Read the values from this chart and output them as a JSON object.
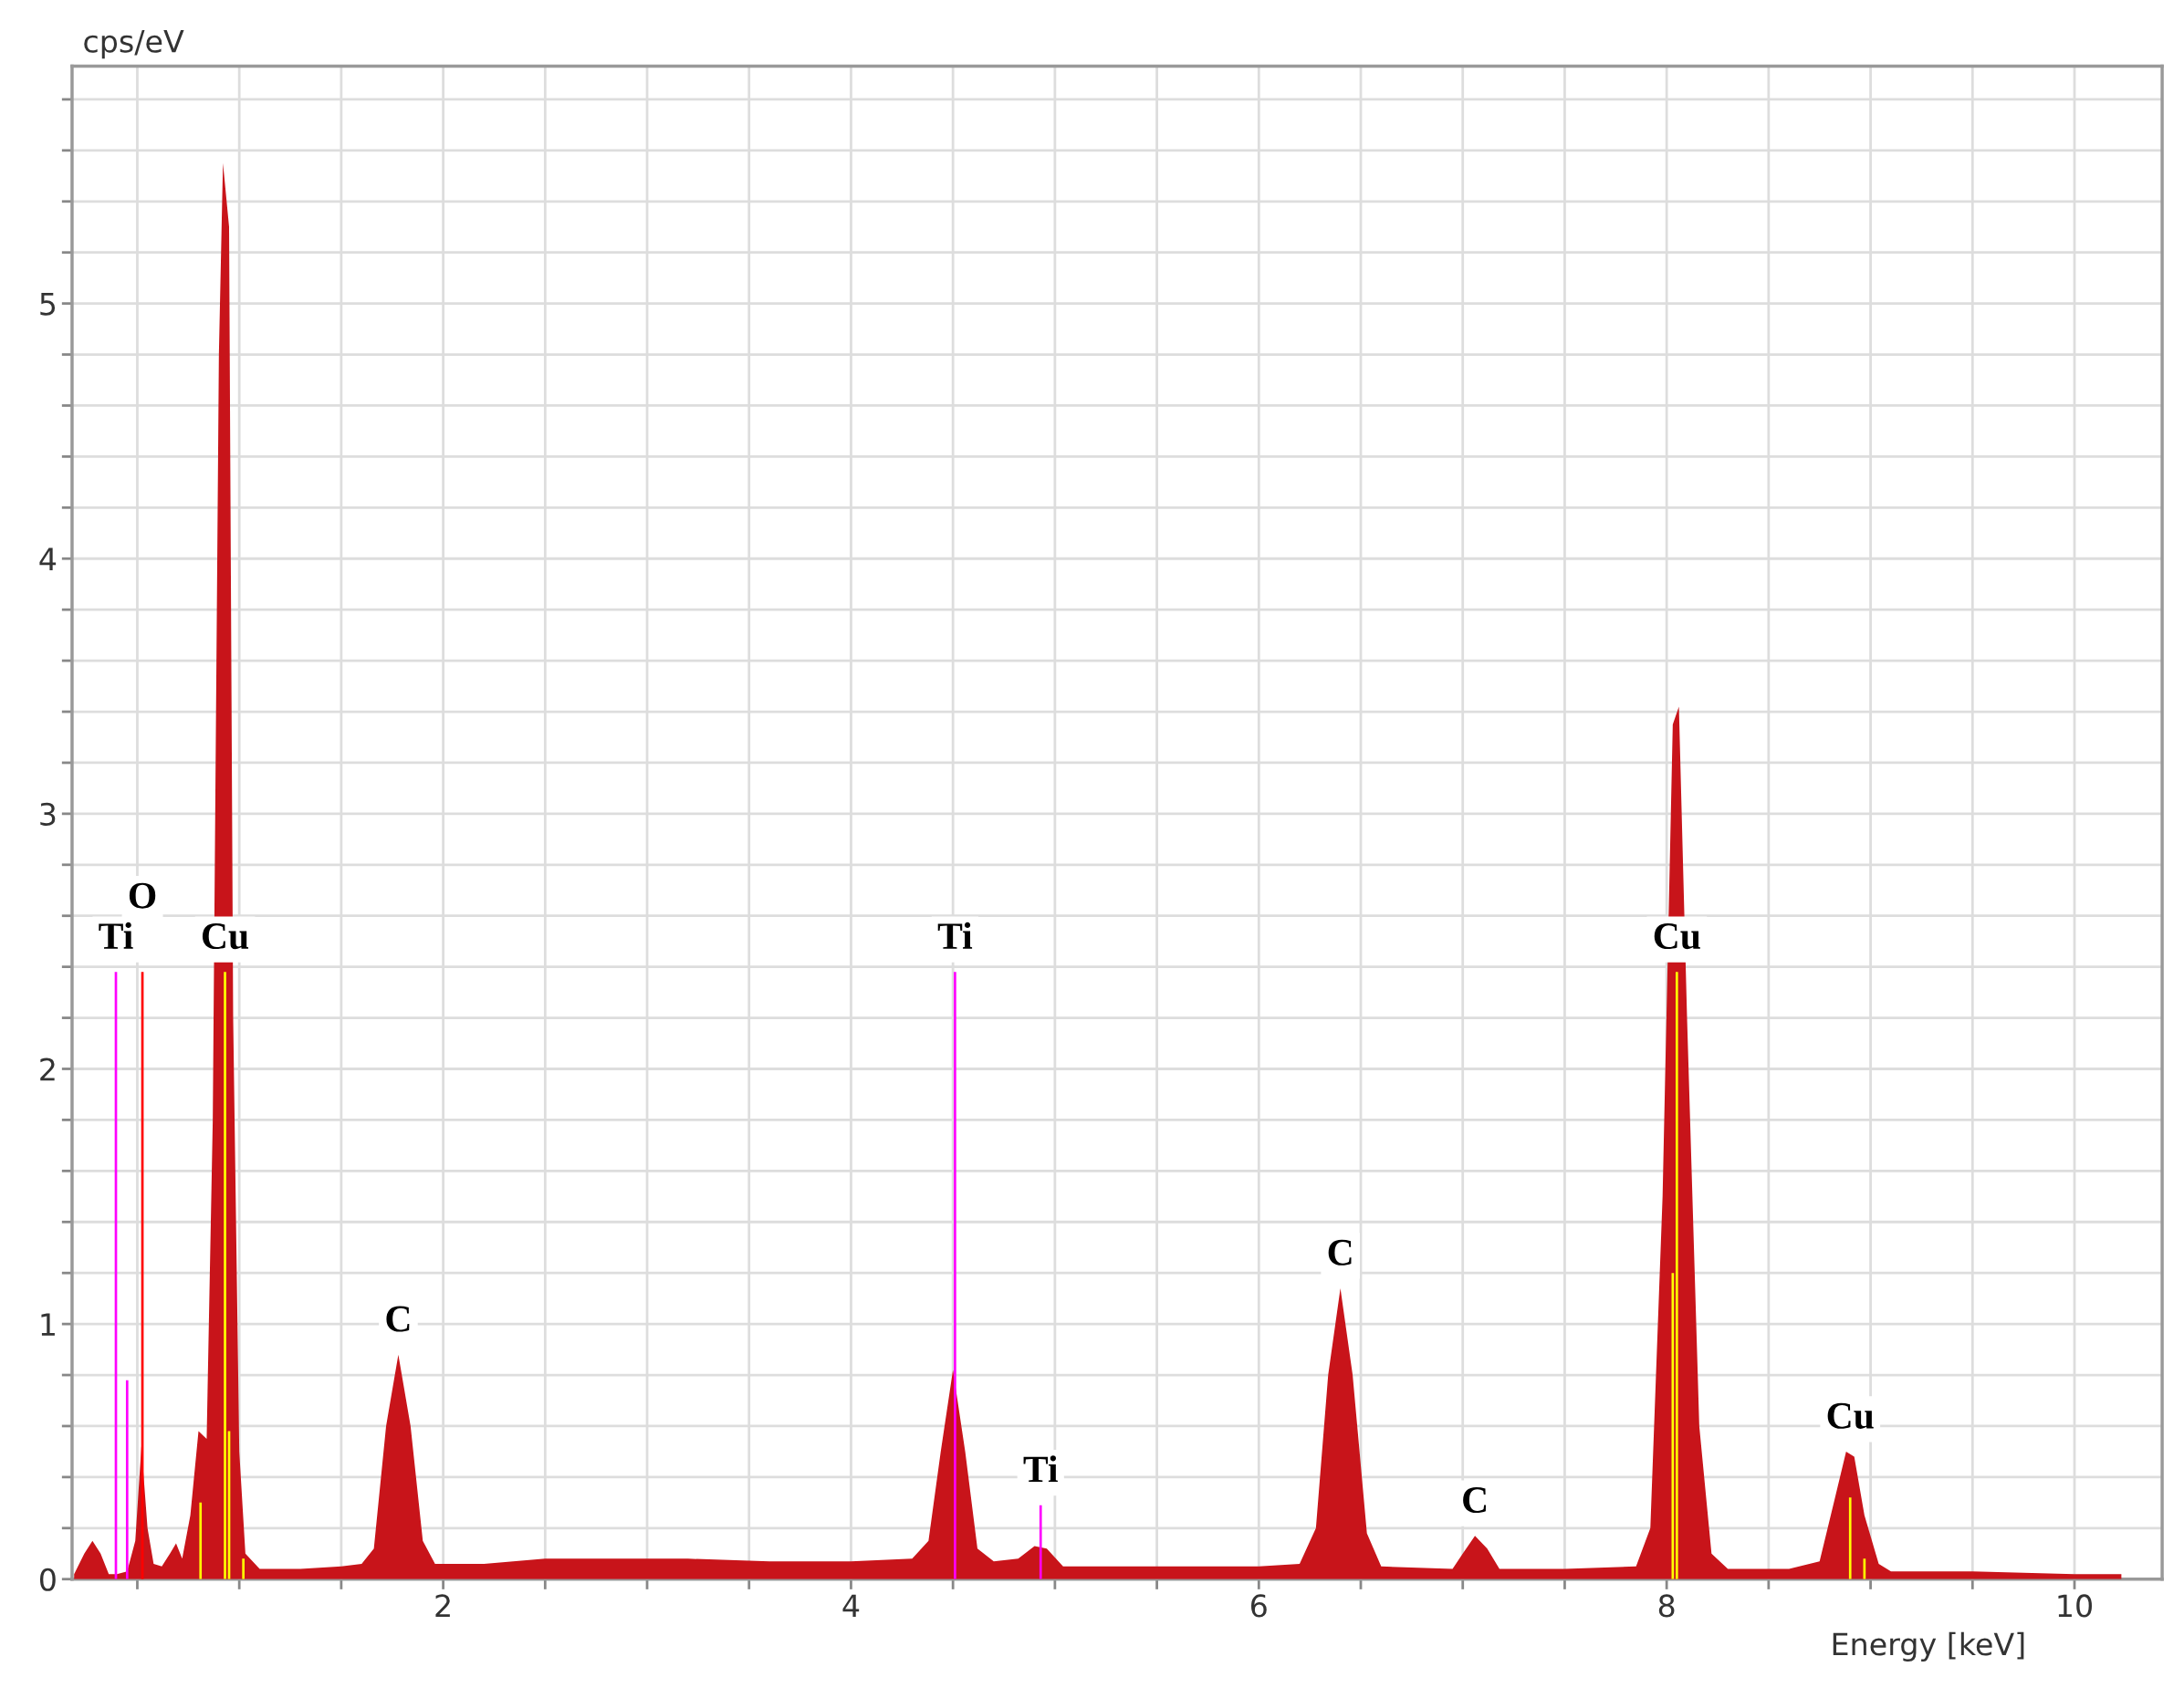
{
  "chart_data": {
    "type": "area",
    "xlabel": "Energy [keV]",
    "ylabel": "cps/eV",
    "xlim": [
      0.18,
      10.43
    ],
    "ylim": [
      0,
      5.93
    ],
    "xticks": [
      {
        "value": 0.5,
        "label": null
      },
      {
        "value": 1,
        "label": null
      },
      {
        "value": 1.5,
        "label": null
      },
      2,
      {
        "value": 2.5,
        "label": null
      },
      {
        "value": 3,
        "label": null
      },
      {
        "value": 3.5,
        "label": null
      },
      4,
      {
        "value": 4.5,
        "label": null
      },
      {
        "value": 5,
        "label": null
      },
      {
        "value": 5.5,
        "label": null
      },
      6,
      {
        "value": 6.5,
        "label": null
      },
      {
        "value": 7,
        "label": null
      },
      {
        "value": 7.5,
        "label": null
      },
      8,
      {
        "value": 8.5,
        "label": null
      },
      {
        "value": 9,
        "label": null
      },
      {
        "value": 9.5,
        "label": null
      },
      10
    ],
    "yticks": [
      0,
      {
        "value": 0.2,
        "label": null
      },
      {
        "value": 0.4,
        "label": null
      },
      {
        "value": 0.6,
        "label": null
      },
      {
        "value": 0.8,
        "label": null
      },
      1,
      {
        "value": 1.2,
        "label": null
      },
      {
        "value": 1.4,
        "label": null
      },
      {
        "value": 1.6,
        "label": null
      },
      {
        "value": 1.8,
        "label": null
      },
      2,
      {
        "value": 2.2,
        "label": null
      },
      {
        "value": 2.4,
        "label": null
      },
      {
        "value": 2.6,
        "label": null
      },
      {
        "value": 2.8,
        "label": null
      },
      3,
      {
        "value": 3.2,
        "label": null
      },
      {
        "value": 3.4,
        "label": null
      },
      {
        "value": 3.6,
        "label": null
      },
      {
        "value": 3.8,
        "label": null
      },
      4,
      {
        "value": 4.2,
        "label": null
      },
      {
        "value": 4.4,
        "label": null
      },
      {
        "value": 4.6,
        "label": null
      },
      {
        "value": 4.8,
        "label": null
      },
      5,
      {
        "value": 5.2,
        "label": null
      },
      {
        "value": 5.4,
        "label": null
      },
      {
        "value": 5.6,
        "label": null
      },
      {
        "value": 5.8,
        "label": null
      }
    ],
    "grid": true,
    "legend": false,
    "series": [
      {
        "color": "#c8141a",
        "x": [
          0.19,
          0.24,
          0.28,
          0.32,
          0.36,
          0.4,
          0.45,
          0.49,
          0.52,
          0.55,
          0.58,
          0.62,
          0.66,
          0.69,
          0.72,
          0.76,
          0.8,
          0.84,
          0.87,
          0.9,
          0.92,
          0.95,
          0.97,
          1.0,
          1.03,
          1.1,
          1.3,
          1.5,
          1.6,
          1.66,
          1.72,
          1.78,
          1.84,
          1.9,
          1.96,
          2.2,
          2.5,
          2.8,
          3.2,
          3.6,
          4.0,
          4.3,
          4.38,
          4.44,
          4.5,
          4.56,
          4.62,
          4.7,
          4.82,
          4.9,
          4.96,
          5.04,
          5.5,
          6.0,
          6.2,
          6.28,
          6.34,
          6.4,
          6.46,
          6.53,
          6.6,
          6.95,
          7.0,
          7.06,
          7.12,
          7.18,
          7.5,
          7.85,
          7.92,
          7.98,
          8.03,
          8.06,
          8.1,
          8.16,
          8.22,
          8.3,
          8.6,
          8.75,
          8.82,
          8.88,
          8.92,
          8.97,
          9.04,
          9.1,
          9.5,
          10.0,
          10.23
        ],
        "values": [
          0.02,
          0.1,
          0.15,
          0.1,
          0.02,
          0.02,
          0.03,
          0.15,
          0.52,
          0.2,
          0.06,
          0.05,
          0.1,
          0.14,
          0.08,
          0.25,
          0.58,
          0.55,
          1.8,
          4.8,
          5.55,
          5.3,
          2.2,
          0.5,
          0.1,
          0.04,
          0.04,
          0.05,
          0.06,
          0.12,
          0.6,
          0.88,
          0.6,
          0.15,
          0.06,
          0.06,
          0.08,
          0.08,
          0.08,
          0.07,
          0.07,
          0.08,
          0.15,
          0.5,
          0.82,
          0.5,
          0.12,
          0.07,
          0.08,
          0.13,
          0.12,
          0.05,
          0.05,
          0.05,
          0.06,
          0.2,
          0.8,
          1.14,
          0.8,
          0.18,
          0.05,
          0.04,
          0.1,
          0.17,
          0.12,
          0.04,
          0.04,
          0.05,
          0.2,
          1.5,
          3.35,
          3.42,
          2.2,
          0.6,
          0.1,
          0.04,
          0.04,
          0.07,
          0.3,
          0.5,
          0.48,
          0.25,
          0.06,
          0.03,
          0.03,
          0.02,
          0.02
        ]
      },
      {
        "type": "bar",
        "color": "#ff00ff",
        "x": [
          0.395,
          0.45,
          4.51,
          4.93
        ],
        "values": [
          2.38,
          0.78,
          2.38,
          0.29
        ]
      },
      {
        "type": "bar",
        "color": "#ff0000",
        "x": [
          0.525
        ],
        "values": [
          2.38
        ]
      },
      {
        "type": "bar",
        "color": "#ffff00",
        "x": [
          0.81,
          0.93,
          0.95,
          1.02,
          8.03,
          8.05,
          8.9,
          8.97
        ],
        "values": [
          0.3,
          2.38,
          0.58,
          0.08,
          1.2,
          2.38,
          0.32,
          0.08
        ]
      }
    ],
    "annotations": [
      {
        "text": "Ti",
        "x": 0.395,
        "y": 2.38
      },
      {
        "text": "O",
        "x": 0.525,
        "y": 2.38
      },
      {
        "text": "Cu",
        "x": 0.93,
        "y": 2.38
      },
      {
        "text": "C",
        "x": 1.78,
        "y": 0.88
      },
      {
        "text": "Ti",
        "x": 4.51,
        "y": 2.38
      },
      {
        "text": "Ti",
        "x": 4.93,
        "y": 0.29
      },
      {
        "text": "C",
        "x": 6.4,
        "y": 1.14
      },
      {
        "text": "C",
        "x": 7.06,
        "y": 0.17
      },
      {
        "text": "Cu",
        "x": 8.05,
        "y": 2.38
      },
      {
        "text": "Cu",
        "x": 8.9,
        "y": 0.5
      }
    ]
  }
}
